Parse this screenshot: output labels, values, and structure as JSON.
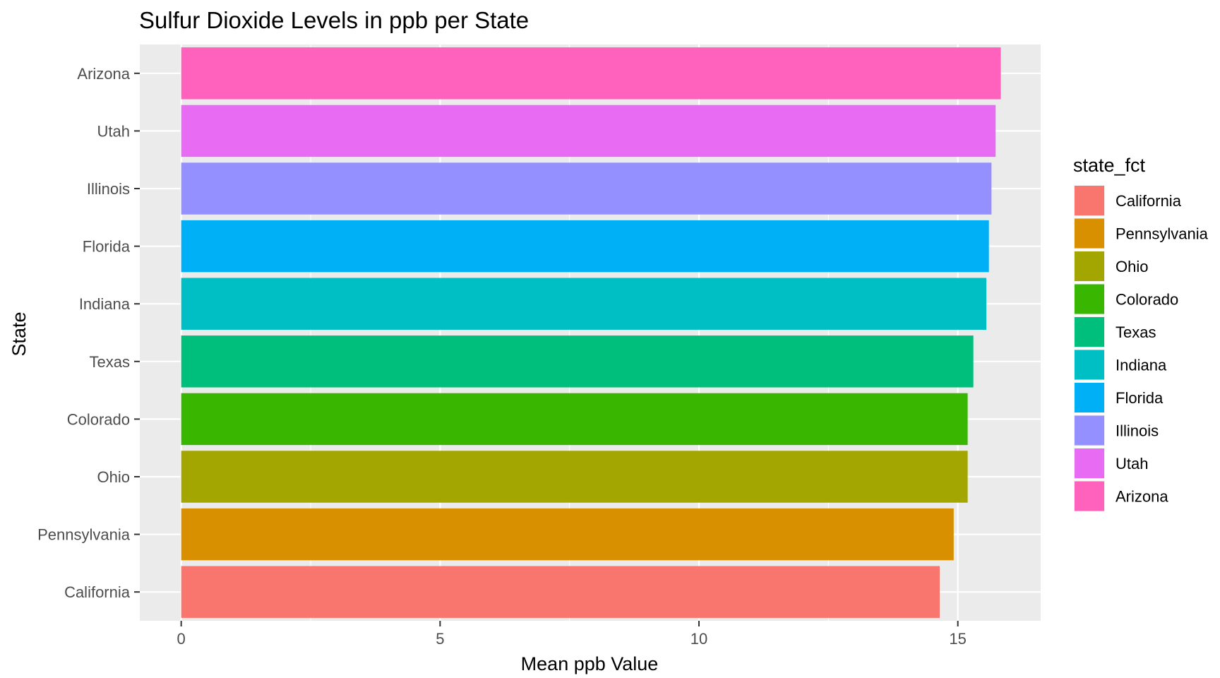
{
  "chart_data": {
    "type": "bar",
    "orientation": "horizontal",
    "title": "Sulfur Dioxide Levels in ppb per State",
    "xlabel": "Mean ppb Value",
    "ylabel": "State",
    "xlim": [
      -0.8,
      16.6
    ],
    "xticks": [
      0,
      5,
      10,
      15
    ],
    "xtick_labels": [
      "0",
      "5",
      "10",
      "15"
    ],
    "grid": true,
    "background": "#EBEBEB",
    "categories": [
      "California",
      "Pennsylvania",
      "Ohio",
      "Colorado",
      "Texas",
      "Indiana",
      "Florida",
      "Illinois",
      "Utah",
      "Arizona"
    ],
    "values": [
      14.65,
      14.92,
      15.19,
      15.19,
      15.3,
      15.55,
      15.6,
      15.65,
      15.73,
      15.83
    ],
    "colors": [
      "#F8766D",
      "#D89000",
      "#A3A500",
      "#39B600",
      "#00BF7D",
      "#00BFC4",
      "#00B0F6",
      "#9590FF",
      "#E76BF3",
      "#FF62BC"
    ],
    "legend": {
      "title": "state_fct",
      "position": "right",
      "entries": [
        "California",
        "Pennsylvania",
        "Ohio",
        "Colorado",
        "Texas",
        "Indiana",
        "Florida",
        "Illinois",
        "Utah",
        "Arizona"
      ]
    }
  }
}
